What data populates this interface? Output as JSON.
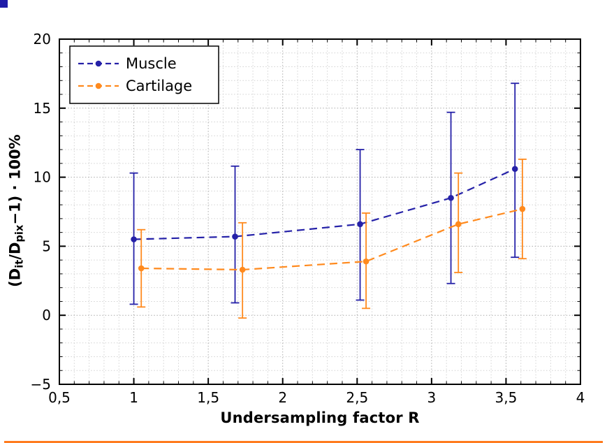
{
  "page": {
    "background": "#ffffff",
    "decorations": {
      "corner_square_color": "#1f1ca8",
      "bottom_strip_color": "#ff7c1f"
    }
  },
  "chart_data": {
    "type": "line",
    "title": "",
    "xlabel": "Undersampling factor R",
    "ylabel": "(D_it/D_pix−1) · 100%",
    "ylabel_parts": {
      "p1": "(D",
      "s1": "it",
      "p2": "/D",
      "s2": "pix",
      "p3": "−1) · 100%"
    },
    "xlim": [
      0.5,
      4
    ],
    "ylim": [
      -5,
      20
    ],
    "x_tick_values": [
      0.5,
      1,
      1.5,
      2,
      2.5,
      3,
      3.5,
      4
    ],
    "x_tick_labels": [
      "0,5",
      "1",
      "1,5",
      "2",
      "2,5",
      "3",
      "3,5",
      "4"
    ],
    "y_tick_values": [
      -5,
      0,
      5,
      10,
      15,
      20
    ],
    "y_tick_labels": [
      "−5",
      "0",
      "5",
      "10",
      "15",
      "20"
    ],
    "x_minor_step": 0.1,
    "y_minor_step": 1,
    "grid": true,
    "grid_minor_color": "#d2d2d2",
    "grid_major_color": "#aaaaaa",
    "legend": {
      "position": "top-left",
      "entries": [
        "Muscle",
        "Cartilage"
      ]
    },
    "series": [
      {
        "name": "Muscle",
        "color": "#2521a8",
        "x": [
          1.0,
          1.68,
          2.52,
          3.13,
          3.56
        ],
        "y": [
          5.5,
          5.7,
          6.6,
          8.5,
          10.6
        ],
        "y_low": [
          0.8,
          0.9,
          1.1,
          2.3,
          4.2
        ],
        "y_high": [
          10.3,
          10.8,
          12.0,
          14.7,
          16.8
        ]
      },
      {
        "name": "Cartilage",
        "color": "#ff8a1e",
        "x": [
          1.05,
          1.73,
          2.56,
          3.18,
          3.61
        ],
        "y": [
          3.4,
          3.3,
          3.9,
          6.6,
          7.7
        ],
        "y_low": [
          0.6,
          -0.2,
          0.5,
          3.1,
          4.1
        ],
        "y_high": [
          6.2,
          6.7,
          7.4,
          10.3,
          11.3
        ]
      }
    ]
  }
}
